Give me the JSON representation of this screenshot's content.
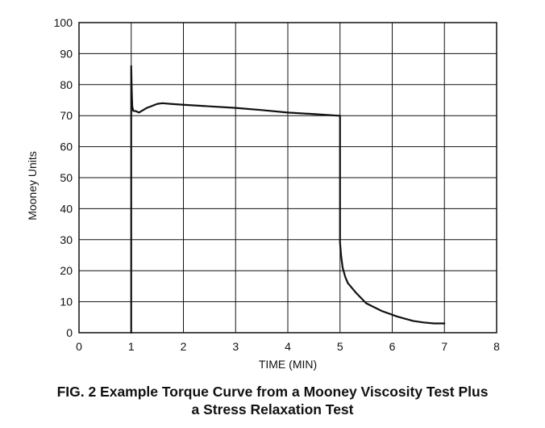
{
  "chart_data": {
    "type": "line",
    "title": "",
    "xlabel": "TIME (MIN)",
    "ylabel": "Mooney Units",
    "xlim": [
      0,
      8
    ],
    "ylim": [
      0,
      100
    ],
    "x_ticks": [
      "0",
      "1",
      "2",
      "3",
      "4",
      "5",
      "6",
      "7",
      "8"
    ],
    "y_ticks": [
      "0",
      "10",
      "20",
      "30",
      "40",
      "50",
      "60",
      "70",
      "80",
      "90",
      "100"
    ],
    "grid": true,
    "series": [
      {
        "color": "#111111",
        "x": [
          1.0,
          1.0,
          1.01,
          1.02,
          1.04,
          1.08,
          1.15,
          1.3,
          1.5,
          1.6,
          1.75,
          2.0,
          2.5,
          3.0,
          3.5,
          4.0,
          4.5,
          4.95,
          5.0,
          5.0,
          5.02,
          5.05,
          5.1,
          5.15,
          5.3,
          5.5,
          5.8,
          6.1,
          6.4,
          6.6,
          6.8,
          7.0
        ],
        "y": [
          0,
          86,
          78,
          73,
          71.5,
          71.5,
          71,
          72.5,
          73.8,
          74,
          73.8,
          73.5,
          73,
          72.5,
          71.8,
          71,
          70.5,
          70,
          70,
          29,
          25,
          21,
          18,
          16,
          13,
          9.5,
          7,
          5.2,
          3.8,
          3.3,
          3,
          3
        ]
      }
    ],
    "caption_lines": [
      "FIG. 2 Example Torque Curve from a Mooney Viscosity Test Plus",
      "a Stress Relaxation Test"
    ]
  }
}
